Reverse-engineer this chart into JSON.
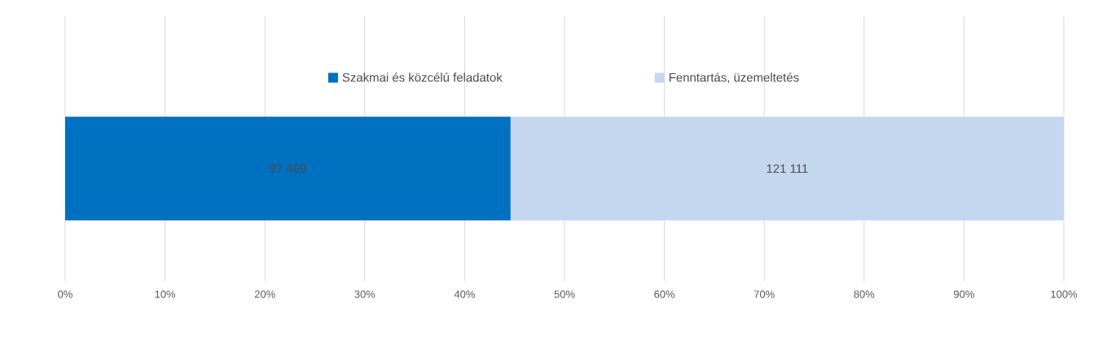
{
  "chart_data": {
    "type": "bar",
    "orientation": "horizontal",
    "stacked": true,
    "categories": [
      null
    ],
    "series": [
      {
        "name": "Szakmai és közcélú feladatok",
        "color": "#0070c0",
        "values": [
          44.6
        ]
      },
      {
        "name": "Fenntartás, üzemeltetés",
        "color": "#c5d7ef",
        "values": [
          55.4
        ]
      }
    ],
    "annotations": [
      "97 469",
      "121 111"
    ],
    "xlim": [
      0,
      100
    ],
    "xticks": [
      {
        "value": 0,
        "label": "0%"
      },
      {
        "value": 10,
        "label": "10%"
      },
      {
        "value": 20,
        "label": "20%"
      },
      {
        "value": 30,
        "label": "30%"
      },
      {
        "value": 40,
        "label": "40%"
      },
      {
        "value": 50,
        "label": "50%"
      },
      {
        "value": 60,
        "label": "60%"
      },
      {
        "value": 70,
        "label": "70%"
      },
      {
        "value": 80,
        "label": "80%"
      },
      {
        "value": 90,
        "label": "90%"
      },
      {
        "value": 100,
        "label": "100%"
      }
    ],
    "grid": "x",
    "legend": "top",
    "tick_labels": "x"
  }
}
